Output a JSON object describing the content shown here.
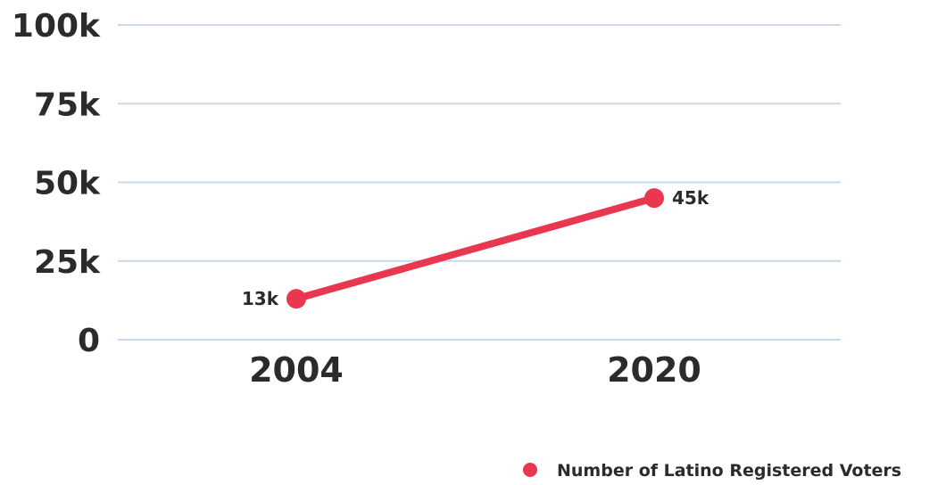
{
  "chart_data": {
    "type": "line",
    "categories": [
      "2004",
      "2020"
    ],
    "series": [
      {
        "name": "Number of Latino Registered Voters",
        "values": [
          13000,
          45000
        ],
        "color": "#e8374f"
      }
    ],
    "data_labels": [
      "13k",
      "45k"
    ],
    "yticks": [
      0,
      25000,
      50000,
      75000,
      100000
    ],
    "ytick_labels": [
      "0",
      "25k",
      "50k",
      "75k",
      "100k"
    ],
    "ylim": [
      0,
      100000
    ],
    "title": "",
    "xlabel": "",
    "ylabel": "",
    "grid": true,
    "grid_color": "#c9d9ea",
    "legend_position": "bottom-right"
  }
}
